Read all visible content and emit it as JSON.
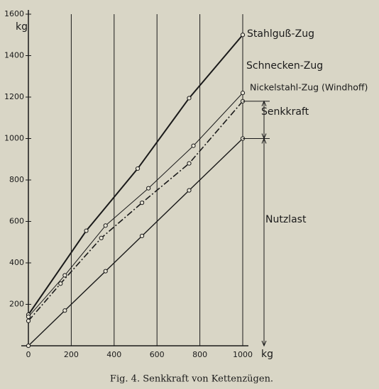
{
  "chart_data": {
    "type": "line",
    "caption": "Fig. 4.  Senkkraft von Kettenzügen.",
    "x_label": "kg",
    "y_label": "kg",
    "xlim": [
      0,
      1000
    ],
    "ylim": [
      0,
      1600
    ],
    "xticks": [
      0,
      200,
      400,
      600,
      800,
      1000
    ],
    "yticks": [
      200,
      400,
      600,
      800,
      1000,
      1200,
      1400,
      1600
    ],
    "grid": "x",
    "series": [
      {
        "name": "Stahlguß-Zug",
        "color": "#1a1a1a",
        "style": "solid",
        "width": 2,
        "x": [
          0,
          270,
          510,
          750,
          1000
        ],
        "values": [
          150,
          555,
          855,
          1195,
          1500
        ]
      },
      {
        "name": "Schnecken-Zug",
        "color": "#1a1a1a",
        "style": "solid",
        "width": 1,
        "x": [
          0,
          170,
          360,
          560,
          770,
          1000
        ],
        "values": [
          140,
          340,
          580,
          760,
          965,
          1220
        ]
      },
      {
        "name": "Nickelstahl-Zug (Windhoff)",
        "color": "#1a1a1a",
        "style": "dashdot",
        "width": 1.6,
        "x": [
          0,
          150,
          340,
          530,
          750,
          1000
        ],
        "values": [
          120,
          300,
          520,
          690,
          880,
          1180
        ]
      },
      {
        "name": "Nutzlast",
        "color": "#1a1a1a",
        "style": "solid",
        "width": 1.4,
        "x": [
          0,
          170,
          360,
          530,
          750,
          1000
        ],
        "values": [
          0,
          170,
          360,
          530,
          750,
          1000
        ]
      }
    ],
    "annotations": [
      {
        "text": "Senkkraft"
      }
    ]
  }
}
